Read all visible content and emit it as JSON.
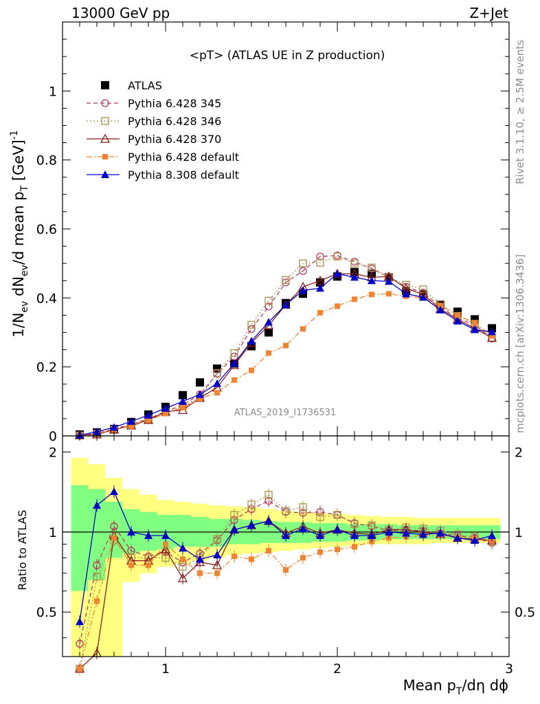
{
  "header": {
    "energy": "13000 GeV pp",
    "process": "Z+Jet"
  },
  "side_text": {
    "rivet": "Rivet 3.1.10, ≥ 2.5M events",
    "mcplots": "mcplots.cern.ch [arXiv:1306.3436]"
  },
  "chart_data": [
    {
      "type": "scatter",
      "title": "<pT> (ATLAS UE in Z production)",
      "ylabel": "1/N_ev dN_ev/d mean p_T [GeV]^-1",
      "watermark": "ATLAS_2019_I1736531",
      "xlim": [
        0.4,
        3.0
      ],
      "ylim": [
        0,
        1.2
      ],
      "yticks": [
        "0",
        "0.2",
        "0.4",
        "0.6",
        "0.8",
        "1"
      ],
      "x": [
        0.5,
        0.6,
        0.7,
        0.8,
        0.9,
        1.0,
        1.1,
        1.2,
        1.3,
        1.4,
        1.5,
        1.6,
        1.7,
        1.8,
        1.9,
        2.0,
        2.1,
        2.2,
        2.3,
        2.4,
        2.5,
        2.6,
        2.7,
        2.8,
        2.9
      ],
      "legend_position": "top-left",
      "series": [
        {
          "name": "ATLAS",
          "color": "#000000",
          "marker": "square-filled",
          "values": [
            0.004,
            0.01,
            0.02,
            0.04,
            0.062,
            0.084,
            0.118,
            0.155,
            0.195,
            0.21,
            0.26,
            0.3,
            0.385,
            0.412,
            0.445,
            0.462,
            0.475,
            0.47,
            0.46,
            0.42,
            0.41,
            0.38,
            0.36,
            0.338,
            0.312
          ]
        },
        {
          "name": "Pythia 6.428 345",
          "color": "#b5385a",
          "marker": "circle-open",
          "dash": "dashed",
          "values": [
            0.002,
            0.008,
            0.02,
            0.034,
            0.05,
            0.07,
            0.09,
            0.12,
            0.18,
            0.23,
            0.31,
            0.375,
            0.445,
            0.478,
            0.52,
            0.523,
            0.505,
            0.485,
            0.46,
            0.432,
            0.415,
            0.375,
            0.34,
            0.322,
            0.282
          ]
        },
        {
          "name": "Pythia 6.428 346",
          "color": "#a8904c",
          "marker": "square-open",
          "dash": "dotted",
          "values": [
            0.001,
            0.007,
            0.018,
            0.033,
            0.048,
            0.068,
            0.085,
            0.112,
            0.182,
            0.24,
            0.322,
            0.392,
            0.452,
            0.5,
            0.502,
            0.52,
            0.5,
            0.488,
            0.46,
            0.438,
            0.425,
            0.382,
            0.348,
            0.325,
            0.285
          ]
        },
        {
          "name": "Pythia 6.428 370",
          "color": "#8b1a1a",
          "marker": "triangle-open",
          "dash": "solid",
          "values": [
            0.002,
            0.004,
            0.018,
            0.03,
            0.046,
            0.07,
            0.075,
            0.11,
            0.14,
            0.205,
            0.27,
            0.32,
            0.38,
            0.432,
            0.45,
            0.47,
            0.47,
            0.46,
            0.462,
            0.428,
            0.41,
            0.368,
            0.338,
            0.312,
            0.284
          ]
        },
        {
          "name": "Pythia 6.428 default",
          "color": "#f4832f",
          "marker": "square-filled-small",
          "dash": "dashdot",
          "values": [
            0.001,
            0.006,
            0.018,
            0.028,
            0.045,
            0.065,
            0.082,
            0.108,
            0.125,
            0.162,
            0.19,
            0.24,
            0.262,
            0.31,
            0.357,
            0.376,
            0.396,
            0.41,
            0.412,
            0.405,
            0.4,
            0.378,
            0.35,
            0.328,
            0.29
          ]
        },
        {
          "name": "Pythia 8.308 default",
          "color": "#0000cc",
          "marker": "triangle-filled",
          "dash": "solid",
          "values": [
            0.002,
            0.012,
            0.025,
            0.042,
            0.06,
            0.08,
            0.1,
            0.12,
            0.152,
            0.21,
            0.275,
            0.33,
            0.38,
            0.422,
            0.428,
            0.47,
            0.46,
            0.45,
            0.448,
            0.412,
            0.402,
            0.365,
            0.333,
            0.308,
            0.302
          ]
        }
      ]
    },
    {
      "type": "scatter",
      "ylabel": "Ratio to ATLAS",
      "xlabel": "Mean p_T/dη dϕ",
      "xlim": [
        0.4,
        3.0
      ],
      "ylim": [
        0.34,
        2.3
      ],
      "log_y": true,
      "yticks_left": [
        "0.5",
        "1",
        "2"
      ],
      "yticks_right": [
        "0.5",
        "1",
        "2"
      ],
      "xticks": [
        "1",
        "2",
        "3"
      ],
      "x": [
        0.5,
        0.6,
        0.7,
        0.8,
        0.9,
        1.0,
        1.1,
        1.2,
        1.3,
        1.4,
        1.5,
        1.6,
        1.7,
        1.8,
        1.9,
        2.0,
        2.1,
        2.2,
        2.3,
        2.4,
        2.5,
        2.6,
        2.7,
        2.8,
        2.9
      ],
      "bands": {
        "green": {
          "color": "#80ff80",
          "low": [
            0.6,
            0.66,
            0.8,
            0.83,
            0.85,
            0.86,
            0.88,
            0.88,
            0.88,
            0.9,
            0.9,
            0.91,
            0.91,
            0.91,
            0.92,
            0.92,
            0.93,
            0.93,
            0.94,
            0.94,
            0.94,
            0.94,
            0.94,
            0.94,
            0.94
          ],
          "high": [
            1.5,
            1.45,
            1.3,
            1.22,
            1.19,
            1.16,
            1.16,
            1.14,
            1.12,
            1.12,
            1.11,
            1.1,
            1.09,
            1.09,
            1.08,
            1.08,
            1.07,
            1.07,
            1.07,
            1.06,
            1.06,
            1.06,
            1.06,
            1.06,
            1.06
          ]
        },
        "yellow": {
          "color": "#ffff80",
          "low": [
            0.34,
            0.34,
            0.34,
            0.65,
            0.7,
            0.74,
            0.76,
            0.78,
            0.8,
            0.82,
            0.83,
            0.84,
            0.85,
            0.86,
            0.87,
            0.88,
            0.89,
            0.9,
            0.9,
            0.9,
            0.9,
            0.91,
            0.91,
            0.91,
            0.91
          ],
          "high": [
            1.9,
            1.8,
            1.6,
            1.45,
            1.38,
            1.32,
            1.3,
            1.28,
            1.26,
            1.25,
            1.24,
            1.22,
            1.2,
            1.19,
            1.18,
            1.17,
            1.16,
            1.15,
            1.14,
            1.14,
            1.13,
            1.13,
            1.13,
            1.13,
            1.13
          ]
        }
      },
      "series": [
        {
          "name": "Pythia 6.428 345",
          "color": "#b5385a",
          "marker": "circle-open",
          "dash": "dashed",
          "values": [
            0.38,
            0.75,
            1.05,
            0.85,
            0.81,
            0.84,
            0.77,
            0.83,
            0.93,
            1.11,
            1.22,
            1.31,
            1.19,
            1.18,
            1.19,
            1.16,
            1.08,
            1.05,
            1.01,
            1.02,
            1.01,
            0.99,
            0.97,
            0.95,
            0.91
          ]
        },
        {
          "name": "Pythia 6.428 346",
          "color": "#a8904c",
          "marker": "square-open",
          "dash": "dotted",
          "values": [
            0.25,
            0.68,
            0.93,
            0.8,
            0.8,
            0.8,
            0.74,
            0.8,
            0.94,
            1.16,
            1.27,
            1.38,
            1.2,
            1.24,
            1.14,
            1.16,
            1.07,
            1.06,
            1.02,
            1.04,
            1.03,
            1.01,
            0.98,
            0.96,
            0.92
          ]
        },
        {
          "name": "Pythia 6.428 370",
          "color": "#8b1a1a",
          "marker": "triangle-open",
          "dash": "solid",
          "values": [
            0.2,
            0.35,
            0.97,
            0.78,
            0.78,
            0.86,
            0.67,
            0.77,
            0.75,
            1.02,
            1.06,
            1.1,
            0.99,
            1.05,
            0.99,
            1.02,
            0.99,
            0.98,
            1.02,
            1.02,
            1.0,
            0.98,
            0.95,
            0.94,
            0.93
          ]
        },
        {
          "name": "Pythia 6.428 default",
          "color": "#f4832f",
          "marker": "square-filled-small",
          "dash": "dashdot",
          "values": [
            0.18,
            0.55,
            0.95,
            0.75,
            0.75,
            0.9,
            0.79,
            0.7,
            0.7,
            0.81,
            0.79,
            0.85,
            0.72,
            0.8,
            0.84,
            0.86,
            0.88,
            0.92,
            0.95,
            0.96,
            0.97,
            0.97,
            0.96,
            0.95,
            0.93
          ]
        },
        {
          "name": "Pythia 8.308 default",
          "color": "#0000cc",
          "marker": "triangle-filled",
          "dash": "solid",
          "values": [
            0.46,
            1.26,
            1.42,
            1.0,
            0.97,
            0.97,
            0.87,
            0.79,
            0.82,
            1.02,
            1.06,
            1.1,
            0.97,
            1.03,
            0.97,
            1.02,
            0.97,
            0.97,
            1.0,
            0.99,
            0.98,
            0.99,
            0.95,
            0.93,
            0.97
          ]
        }
      ]
    }
  ]
}
